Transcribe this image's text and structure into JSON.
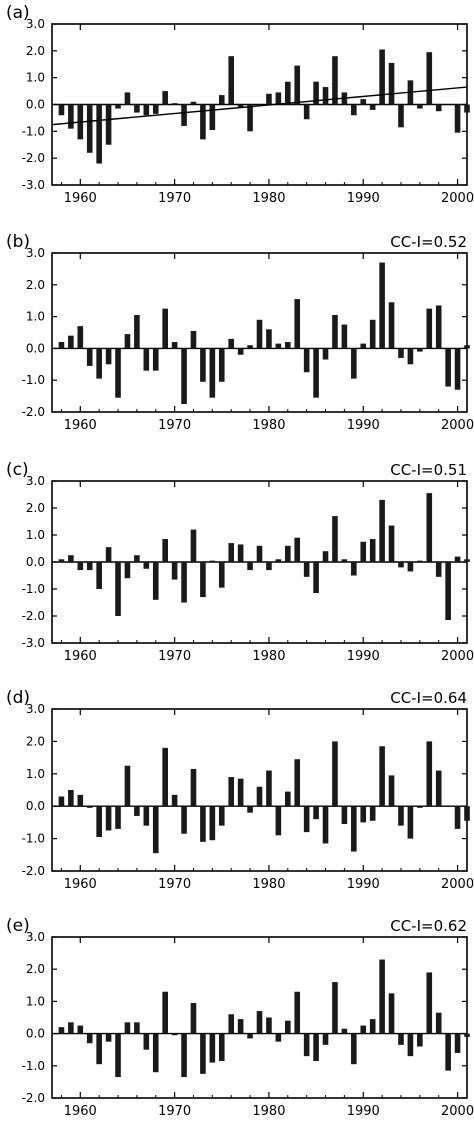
{
  "figure": {
    "colors": {
      "bar": "#1a1a1a",
      "axis": "#000000",
      "background": "#ffffff"
    }
  },
  "chart_data": [
    {
      "type": "bar",
      "label": "(a)",
      "annotation": "",
      "x": [
        1958,
        1959,
        1960,
        1961,
        1962,
        1963,
        1964,
        1965,
        1966,
        1967,
        1968,
        1969,
        1970,
        1971,
        1972,
        1973,
        1974,
        1975,
        1976,
        1977,
        1978,
        1979,
        1980,
        1981,
        1982,
        1983,
        1984,
        1985,
        1986,
        1987,
        1988,
        1989,
        1990,
        1991,
        1992,
        1993,
        1994,
        1995,
        1996,
        1997,
        1998,
        1999,
        2000,
        2001
      ],
      "values": [
        -0.4,
        -0.9,
        -1.3,
        -1.8,
        -2.2,
        -1.5,
        -0.15,
        0.45,
        -0.3,
        -0.4,
        -0.35,
        0.5,
        0.05,
        -0.8,
        0.1,
        -1.3,
        -0.95,
        0.35,
        1.8,
        -0.1,
        -1.0,
        0.0,
        0.4,
        0.45,
        0.85,
        1.45,
        -0.55,
        0.85,
        0.65,
        1.8,
        0.45,
        -0.4,
        0.2,
        -0.2,
        2.05,
        1.55,
        -0.85,
        0.9,
        -0.15,
        1.95,
        -0.25,
        0.0,
        -1.05,
        -0.3
      ],
      "trend": {
        "x": [
          1957,
          2001
        ],
        "y": [
          -0.75,
          0.65
        ]
      },
      "xlim": [
        1957,
        2001
      ],
      "ylim": [
        -3,
        3
      ],
      "xticks": [
        1960,
        1970,
        1980,
        1990,
        2000
      ],
      "yticks": [
        "-3.0",
        "-2.0",
        "-1.0",
        "0.0",
        "1.0",
        "2.0",
        "3.0"
      ]
    },
    {
      "type": "bar",
      "label": "(b)",
      "annotation": "CC-I=0.52",
      "x": [
        1958,
        1959,
        1960,
        1961,
        1962,
        1963,
        1964,
        1965,
        1966,
        1967,
        1968,
        1969,
        1970,
        1971,
        1972,
        1973,
        1974,
        1975,
        1976,
        1977,
        1978,
        1979,
        1980,
        1981,
        1982,
        1983,
        1984,
        1985,
        1986,
        1987,
        1988,
        1989,
        1990,
        1991,
        1992,
        1993,
        1994,
        1995,
        1996,
        1997,
        1998,
        1999,
        2000,
        2001
      ],
      "values": [
        0.2,
        0.4,
        0.7,
        -0.55,
        -0.95,
        -0.5,
        -1.55,
        0.45,
        1.05,
        -0.7,
        -0.7,
        1.25,
        0.2,
        -1.75,
        0.55,
        -1.05,
        -1.55,
        -1.05,
        0.3,
        -0.2,
        0.1,
        0.9,
        0.6,
        0.15,
        0.2,
        1.55,
        -0.75,
        -1.55,
        -0.35,
        1.05,
        0.75,
        -0.95,
        0.15,
        0.9,
        2.7,
        1.45,
        -0.3,
        -0.5,
        -0.1,
        1.25,
        1.35,
        -1.2,
        -1.3,
        0.1
      ],
      "xlim": [
        1957,
        2001
      ],
      "ylim": [
        -2,
        3
      ],
      "xticks": [
        1960,
        1970,
        1980,
        1990,
        2000
      ],
      "yticks": [
        "-2.0",
        "-1.0",
        "0.0",
        "1.0",
        "2.0",
        "3.0"
      ]
    },
    {
      "type": "bar",
      "label": "(c)",
      "annotation": "CC-I=0.51",
      "x": [
        1958,
        1959,
        1960,
        1961,
        1962,
        1963,
        1964,
        1965,
        1966,
        1967,
        1968,
        1969,
        1970,
        1971,
        1972,
        1973,
        1974,
        1975,
        1976,
        1977,
        1978,
        1979,
        1980,
        1981,
        1982,
        1983,
        1984,
        1985,
        1986,
        1987,
        1988,
        1989,
        1990,
        1991,
        1992,
        1993,
        1994,
        1995,
        1996,
        1997,
        1998,
        1999,
        2000,
        2001
      ],
      "values": [
        0.1,
        0.25,
        -0.3,
        -0.3,
        -1.0,
        0.55,
        -2.0,
        -0.6,
        0.25,
        -0.25,
        -1.4,
        0.85,
        -0.65,
        -1.5,
        1.2,
        -1.3,
        0.05,
        -0.95,
        0.7,
        0.65,
        -0.3,
        0.6,
        -0.3,
        0.1,
        0.6,
        0.9,
        -0.55,
        -1.15,
        0.4,
        1.7,
        0.1,
        -0.5,
        0.75,
        0.85,
        2.3,
        1.35,
        -0.2,
        -0.35,
        0.05,
        2.55,
        -0.55,
        -2.15,
        0.2,
        0.1
      ],
      "xlim": [
        1957,
        2001
      ],
      "ylim": [
        -3,
        3
      ],
      "xticks": [
        1960,
        1970,
        1980,
        1990,
        2000
      ],
      "yticks": [
        "-3.0",
        "-2.0",
        "-1.0",
        "0.0",
        "1.0",
        "2.0",
        "3.0"
      ]
    },
    {
      "type": "bar",
      "label": "(d)",
      "annotation": "CC-I=0.64",
      "x": [
        1958,
        1959,
        1960,
        1961,
        1962,
        1963,
        1964,
        1965,
        1966,
        1967,
        1968,
        1969,
        1970,
        1971,
        1972,
        1973,
        1974,
        1975,
        1976,
        1977,
        1978,
        1979,
        1980,
        1981,
        1982,
        1983,
        1984,
        1985,
        1986,
        1987,
        1988,
        1989,
        1990,
        1991,
        1992,
        1993,
        1994,
        1995,
        1996,
        1997,
        1998,
        1999,
        2000,
        2001
      ],
      "values": [
        0.3,
        0.5,
        0.35,
        -0.05,
        -0.95,
        -0.75,
        -0.7,
        1.25,
        -0.3,
        -0.6,
        -1.45,
        1.8,
        0.35,
        -0.85,
        1.15,
        -1.1,
        -1.05,
        -0.6,
        0.9,
        0.85,
        -0.2,
        0.6,
        1.1,
        -0.9,
        0.45,
        1.45,
        -0.8,
        -0.4,
        -1.15,
        2.0,
        -0.55,
        -1.4,
        -0.5,
        -0.45,
        1.85,
        0.95,
        -0.6,
        -1.0,
        -0.05,
        2.0,
        1.1,
        0.0,
        -0.7,
        -0.45
      ],
      "xlim": [
        1957,
        2001
      ],
      "ylim": [
        -2,
        3
      ],
      "xticks": [
        1960,
        1970,
        1980,
        1990,
        2000
      ],
      "yticks": [
        "-2.0",
        "-1.0",
        "0.0",
        "1.0",
        "2.0",
        "3.0"
      ]
    },
    {
      "type": "bar",
      "label": "(e)",
      "annotation": "CC-I=0.62",
      "x": [
        1958,
        1959,
        1960,
        1961,
        1962,
        1963,
        1964,
        1965,
        1966,
        1967,
        1968,
        1969,
        1970,
        1971,
        1972,
        1973,
        1974,
        1975,
        1976,
        1977,
        1978,
        1979,
        1980,
        1981,
        1982,
        1983,
        1984,
        1985,
        1986,
        1987,
        1988,
        1989,
        1990,
        1991,
        1992,
        1993,
        1994,
        1995,
        1996,
        1997,
        1998,
        1999,
        2000,
        2001
      ],
      "values": [
        0.2,
        0.35,
        0.25,
        -0.3,
        -0.95,
        -0.25,
        -1.35,
        0.35,
        0.35,
        -0.5,
        -1.2,
        1.3,
        -0.05,
        -1.35,
        0.95,
        -1.25,
        -0.9,
        -0.85,
        0.6,
        0.45,
        -0.15,
        0.7,
        0.5,
        -0.25,
        0.4,
        1.3,
        -0.7,
        -0.85,
        -0.35,
        1.6,
        0.15,
        -0.95,
        0.25,
        0.45,
        2.3,
        1.25,
        -0.35,
        -0.7,
        -0.4,
        1.9,
        0.65,
        -1.15,
        -0.6,
        -0.1
      ],
      "xlim": [
        1957,
        2001
      ],
      "ylim": [
        -2,
        3
      ],
      "xticks": [
        1960,
        1970,
        1980,
        1990,
        2000
      ],
      "yticks": [
        "-2.0",
        "-1.0",
        "0.0",
        "1.0",
        "2.0",
        "3.0"
      ]
    }
  ]
}
